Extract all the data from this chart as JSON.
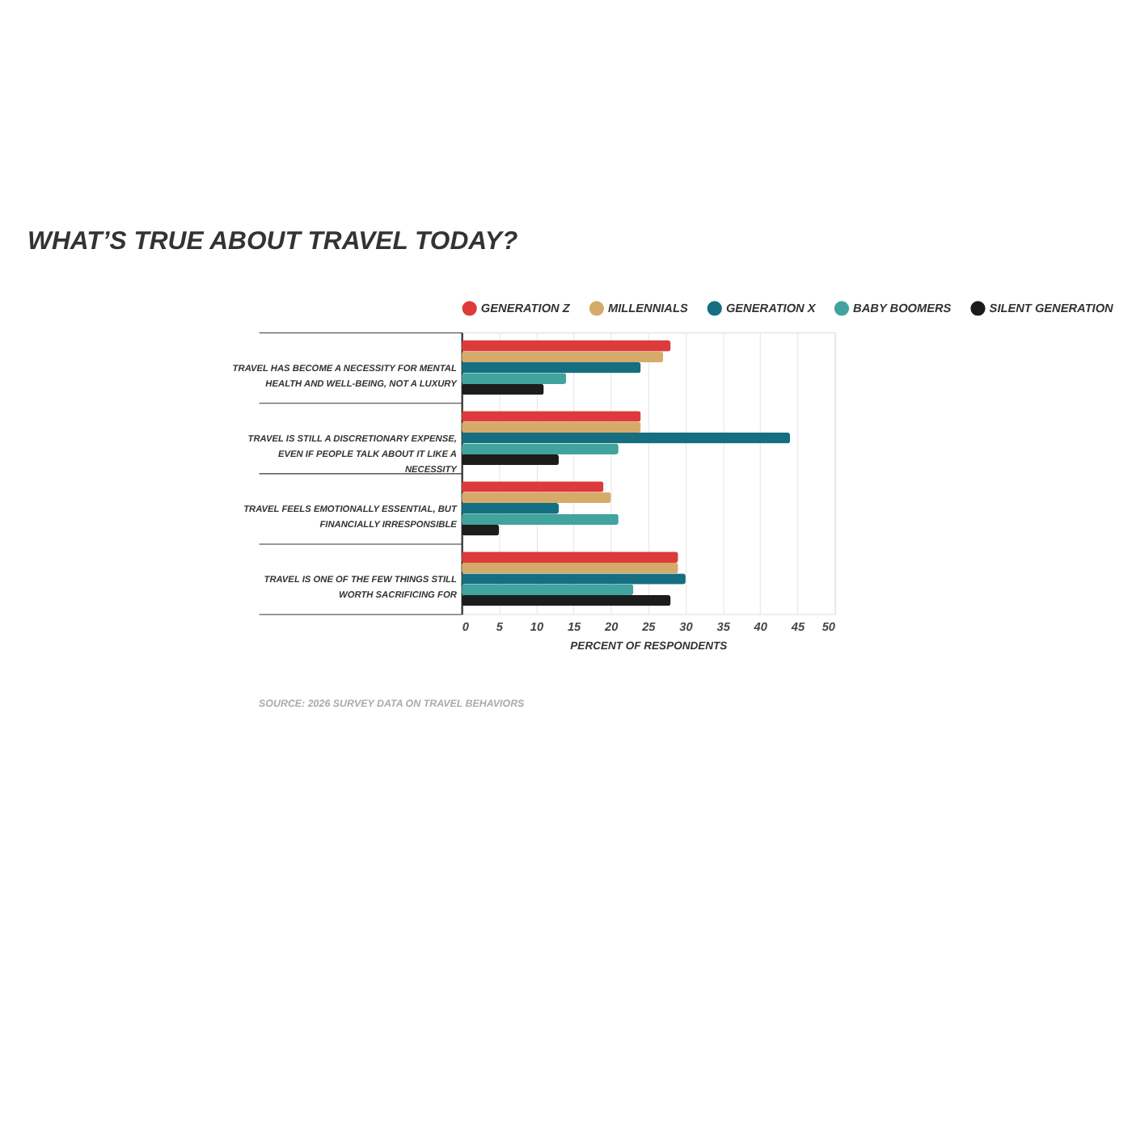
{
  "chart_data": {
    "type": "bar",
    "orientation": "horizontal",
    "title": "WHAT’S TRUE ABOUT TRAVEL TODAY?",
    "categories": [
      "TRAVEL HAS BECOME A NECESSITY FOR MENTAL HEALTH AND WELL-BEING, NOT A LUXURY",
      "TRAVEL IS STILL A DISCRETIONARY EXPENSE, EVEN IF PEOPLE TALK ABOUT IT LIKE A NECESSITY",
      "TRAVEL FEELS EMOTIONALLY ESSENTIAL, BUT FINANCIALLY IRRESPONSIBLE",
      "TRAVEL IS ONE OF THE FEW THINGS STILL WORTH SACRIFICING FOR"
    ],
    "series": [
      {
        "name": "GENERATION Z",
        "color": "#dd3b3b",
        "values": [
          28,
          24,
          19,
          29
        ]
      },
      {
        "name": "MILLENNIALS",
        "color": "#d6ab6a",
        "values": [
          27,
          24,
          20,
          29
        ]
      },
      {
        "name": "GENERATION X",
        "color": "#156f80",
        "values": [
          24,
          44,
          13,
          30
        ]
      },
      {
        "name": "BABY BOOMERS",
        "color": "#41a39e",
        "values": [
          14,
          21,
          21,
          23
        ]
      },
      {
        "name": "SILENT GENERATION",
        "color": "#1c1c1c",
        "values": [
          11,
          13,
          5,
          28
        ]
      }
    ],
    "xlim": [
      0,
      50
    ],
    "xticks": [
      0,
      5,
      10,
      15,
      20,
      25,
      30,
      35,
      40,
      45,
      50
    ],
    "xlabel": "PERCENT OF RESPONDENTS",
    "grid": "x",
    "legend": "top",
    "annotations": [
      "SOURCE: 2026 SURVEY DATA ON TRAVEL BEHAVIORS"
    ]
  }
}
